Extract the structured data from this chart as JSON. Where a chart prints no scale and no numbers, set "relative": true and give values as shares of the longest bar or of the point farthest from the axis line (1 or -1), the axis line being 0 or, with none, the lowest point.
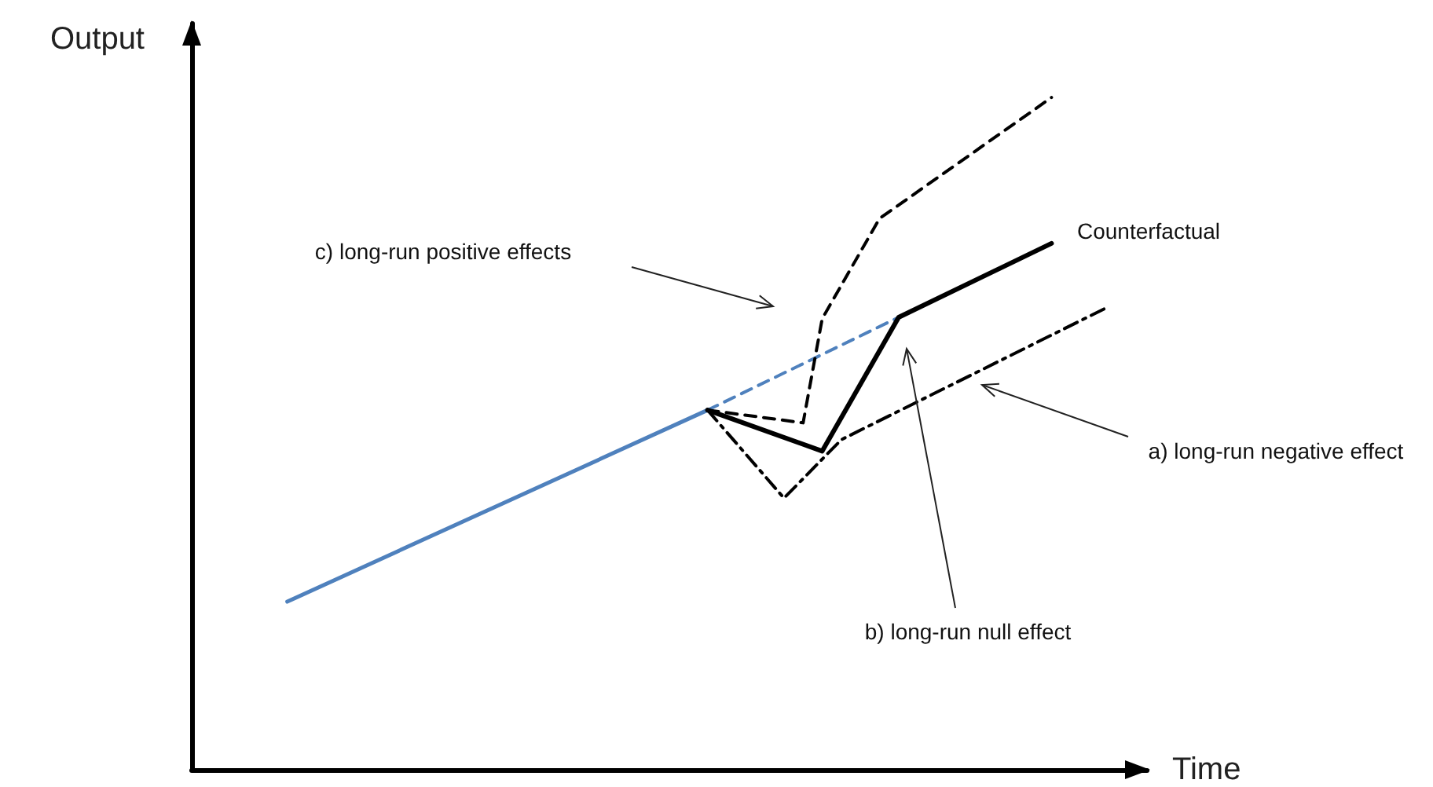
{
  "chart_data": {
    "type": "line",
    "relative": true,
    "xlabel": "Time",
    "ylabel": "Output",
    "marker": "none",
    "categories": [
      null,
      null,
      null,
      null,
      null,
      null,
      null,
      null,
      null,
      null,
      null,
      null,
      null,
      null,
      null,
      null,
      null,
      null,
      null,
      null,
      null,
      null,
      null,
      null,
      null,
      null,
      null,
      null,
      null,
      null,
      null,
      null,
      null,
      null,
      null,
      null,
      null,
      null,
      null,
      null,
      null,
      null,
      null,
      null,
      null,
      null,
      null,
      null,
      null,
      null,
      null
    ],
    "series": [
      {
        "color": "#4f81bd",
        "line_style": "solid",
        "values": [
          null,
          null,
          null,
          null,
          null,
          0.25,
          null,
          null,
          null,
          null,
          null,
          null,
          null,
          null,
          null,
          null,
          null,
          null,
          null,
          null,
          null,
          null,
          null,
          null,
          null,
          null,
          null,
          0.535,
          null,
          null,
          null,
          null,
          null,
          null,
          null,
          null,
          null,
          null,
          null,
          null,
          null,
          null,
          null,
          null,
          null,
          null,
          null,
          null,
          null,
          null,
          null
        ]
      },
      {
        "color": "#4f81bd",
        "line_style": "dashed",
        "values": [
          null,
          null,
          null,
          null,
          null,
          null,
          null,
          null,
          null,
          null,
          null,
          null,
          null,
          null,
          null,
          null,
          null,
          null,
          null,
          null,
          null,
          null,
          null,
          null,
          null,
          null,
          null,
          0.535,
          null,
          null,
          null,
          null,
          null,
          null,
          null,
          null,
          null,
          0.673,
          null,
          null,
          null,
          null,
          null,
          null,
          null,
          null,
          null,
          null,
          null,
          null,
          null
        ]
      },
      {
        "color": "#000000",
        "line_style": "solid",
        "values": [
          null,
          null,
          null,
          null,
          null,
          null,
          null,
          null,
          null,
          null,
          null,
          null,
          null,
          null,
          null,
          null,
          null,
          null,
          null,
          null,
          null,
          null,
          null,
          null,
          null,
          null,
          null,
          0.535,
          null,
          null,
          null,
          null,
          null,
          0.474,
          null,
          null,
          null,
          0.673,
          null,
          null,
          null,
          null,
          null,
          null,
          null,
          0.783,
          null,
          null,
          null,
          null,
          null
        ]
      },
      {
        "color": "#000000",
        "line_style": "dashed",
        "values": [
          null,
          null,
          null,
          null,
          null,
          null,
          null,
          null,
          null,
          null,
          null,
          null,
          null,
          null,
          null,
          null,
          null,
          null,
          null,
          null,
          null,
          null,
          null,
          null,
          null,
          null,
          null,
          0.535,
          null,
          null,
          null,
          null,
          0.516,
          0.671,
          null,
          null,
          0.82,
          null,
          null,
          null,
          null,
          null,
          null,
          null,
          null,
          1,
          null,
          null,
          null,
          null,
          null
        ]
      },
      {
        "color": "#000000",
        "line_style": "dashdot",
        "values": [
          null,
          null,
          null,
          null,
          null,
          null,
          null,
          null,
          null,
          null,
          null,
          null,
          null,
          null,
          null,
          null,
          null,
          null,
          null,
          null,
          null,
          null,
          null,
          null,
          null,
          null,
          null,
          0.535,
          null,
          null,
          null,
          0.404,
          null,
          null,
          0.491,
          null,
          null,
          null,
          null,
          null,
          null,
          null,
          null,
          null,
          null,
          null,
          null,
          null,
          0.689,
          null,
          null
        ]
      }
    ],
    "annotations": [
      "Counterfactual",
      "c) long-run positive effects",
      "a) long-run negative effect",
      "b) long-run null effect"
    ]
  }
}
